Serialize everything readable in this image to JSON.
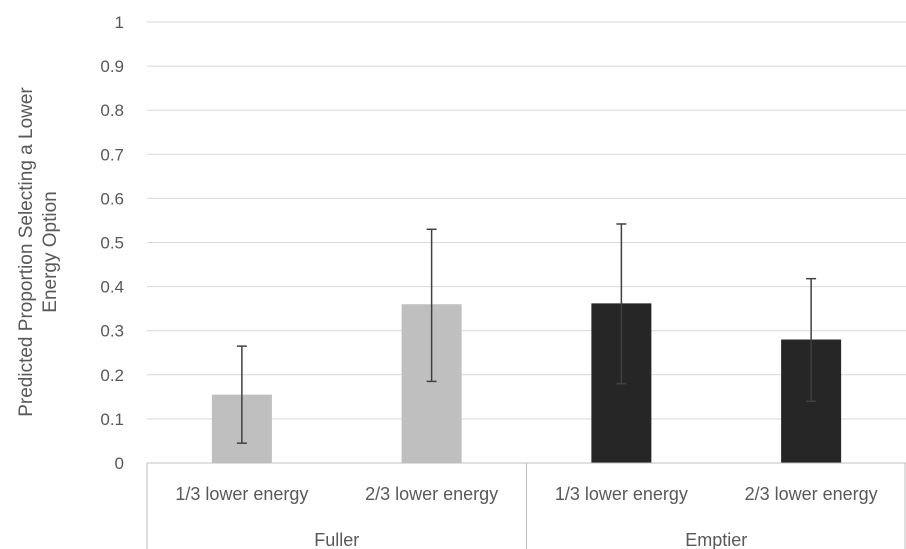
{
  "chart_data": {
    "type": "bar",
    "title": "",
    "ylabel_lines": [
      "Predicted Proportion Selecting a Lower",
      "Energy Option"
    ],
    "xlabel": "",
    "ylim": [
      0,
      1
    ],
    "yticks": [
      0,
      0.1,
      0.2,
      0.3,
      0.4,
      0.5,
      0.6,
      0.7,
      0.8,
      0.9,
      1
    ],
    "ytick_labels": [
      "0",
      "0.1",
      "0.2",
      "0.3",
      "0.4",
      "0.5",
      "0.6",
      "0.7",
      "0.8",
      "0.9",
      "1"
    ],
    "grid": true,
    "legend": "none",
    "groups": [
      {
        "name": "Fuller",
        "color": "#bfbfbf",
        "categories": [
          "1/3 lower energy",
          "2/3 lower energy"
        ],
        "values": [
          0.155,
          0.36
        ],
        "error_low": [
          0.045,
          0.185
        ],
        "error_high": [
          0.265,
          0.53
        ]
      },
      {
        "name": "Emptier",
        "color": "#262626",
        "categories": [
          "1/3 lower energy",
          "2/3 lower energy"
        ],
        "values": [
          0.362,
          0.28
        ],
        "error_low": [
          0.18,
          0.14
        ],
        "error_high": [
          0.542,
          0.418
        ]
      }
    ],
    "colors": {
      "gridline": "#d9d9d9",
      "axis": "#bfbfbf",
      "error_bar": "#404040",
      "text": "#595959"
    }
  }
}
